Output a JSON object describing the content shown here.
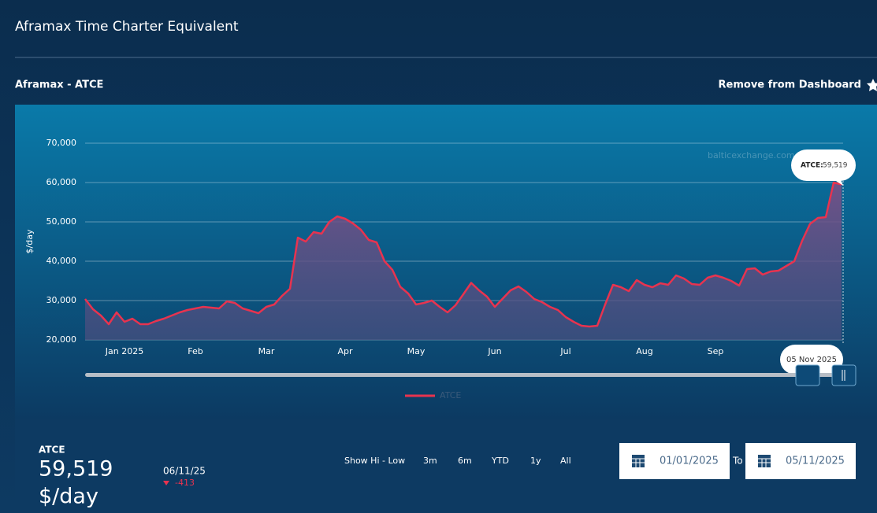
{
  "header": {
    "title": "Aframax Time Charter Equivalent",
    "subtitle": "Aframax - ATCE",
    "action": "Remove from Dashboard"
  },
  "chart_data": {
    "type": "line",
    "ylabel": "$/day",
    "watermark": "balticexchange.com",
    "categories": [
      null,
      null,
      null,
      null,
      null,
      "Jan 2025",
      null,
      null,
      null,
      null,
      null,
      null,
      null,
      null,
      "Feb",
      null,
      null,
      null,
      null,
      null,
      null,
      null,
      null,
      "Mar",
      null,
      null,
      null,
      null,
      null,
      null,
      null,
      null,
      null,
      "Apr",
      null,
      null,
      null,
      null,
      null,
      null,
      null,
      null,
      "May",
      null,
      null,
      null,
      null,
      null,
      null,
      null,
      null,
      null,
      "Jun",
      null,
      null,
      null,
      null,
      null,
      null,
      null,
      null,
      "Jul",
      null,
      null,
      null,
      null,
      null,
      null,
      null,
      null,
      null,
      "Aug",
      null,
      null,
      null,
      null,
      null,
      null,
      null,
      null,
      "Sep",
      null,
      null,
      null,
      null,
      null,
      null,
      null,
      null,
      null,
      null,
      null,
      null,
      null,
      null,
      null,
      null
    ],
    "series": [
      {
        "name": "ATCE",
        "color": "#e8334f",
        "values": [
          30400,
          27800,
          26200,
          24000,
          27000,
          24600,
          25400,
          24000,
          24000,
          24800,
          25400,
          26200,
          27000,
          27600,
          28000,
          28400,
          28200,
          28000,
          29800,
          29400,
          28000,
          27400,
          26800,
          28400,
          29000,
          31200,
          33000,
          46000,
          45000,
          47400,
          47000,
          50000,
          51400,
          50800,
          49600,
          48000,
          45400,
          44800,
          40000,
          37800,
          33500,
          31800,
          29000,
          29400,
          30000,
          28400,
          27000,
          28800,
          31600,
          34500,
          32600,
          31000,
          28400,
          30500,
          32600,
          33600,
          32200,
          30400,
          29600,
          28400,
          27600,
          25800,
          24600,
          23600,
          23400,
          23600,
          29000,
          34000,
          33400,
          32400,
          35200,
          34000,
          33400,
          34400,
          34000,
          36400,
          35600,
          34200,
          34000,
          35800,
          36400,
          35800,
          35000,
          33800,
          38000,
          38200,
          36600,
          37400,
          37600,
          38800,
          40000,
          45200,
          49500,
          51000,
          51200,
          60000,
          59519
        ]
      }
    ],
    "ylim": [
      20000,
      70000
    ],
    "yticks": [
      {
        "value": 20000,
        "label": "20,000"
      },
      {
        "value": 30000,
        "label": "30,000"
      },
      {
        "value": 40000,
        "label": "40,000"
      },
      {
        "value": 50000,
        "label": "50,000"
      },
      {
        "value": 60000,
        "label": "60,000"
      },
      {
        "value": 70000,
        "label": "70,000"
      }
    ],
    "grid": true,
    "tooltip": {
      "label": "ATCE:",
      "value": "59,519",
      "date": "05 Nov 2025"
    }
  },
  "summary": {
    "name": "ATCE",
    "value": "59,519",
    "unit": "$/day",
    "date": "06/11/25",
    "change": "-413"
  },
  "controls": {
    "buttons": [
      "Show Hi - Low",
      "3m",
      "6m",
      "YTD",
      "1y",
      "All"
    ],
    "from": "01/01/2025",
    "to_label": "To",
    "to": "05/11/2025"
  }
}
